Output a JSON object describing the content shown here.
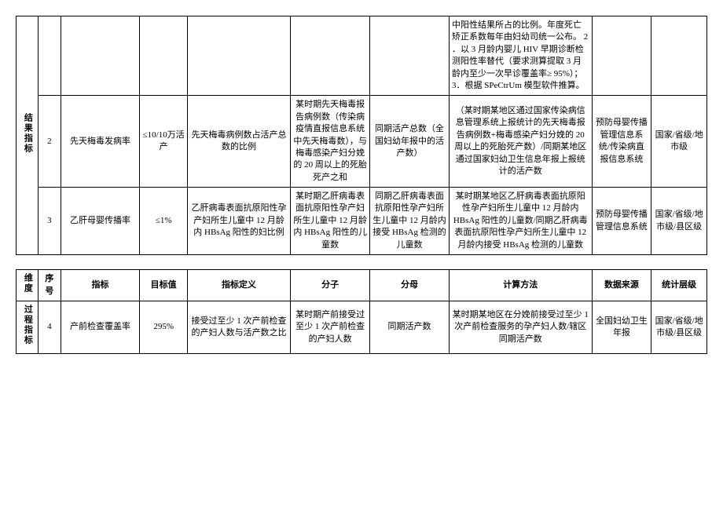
{
  "table1": {
    "dimension": "结果指标",
    "row1": {
      "calc_note": "中阳性结果所占的比例。年度死亡矫正系数每年由妇幼司统一公布。\n2 ．以 3 月龄内婴儿 HIV 早期诊断检测阳性率替代（要求测算提取 3 月龄内至少一次早诊覆盖率≥ 95%）；\n3．根据 SPeCtrUm 模型软件推算。"
    },
    "row2": {
      "seq": "2",
      "indicator": "先天梅毒发病率",
      "target": "≤10/10万活产",
      "definition": "先天梅毒病例数占活产总数的比例",
      "numerator": "某时期先天梅毒报告病例数（传染病疫情直报信息系统中先天梅毒数），与梅毒感染产妇分娩的 20 周以上的死胎死产之和",
      "denominator": "同期活产总数（全国妇幼年报中的活产数）",
      "calc": "（某时期某地区通过国家传染病信息管理系统上报统计的先天梅毒报告病例数+梅毒感染产妇分娩的 20 周以上的死胎死产数）/同期某地区通过国家妇幼卫生信息年报上报统计的活产数",
      "source": "预防母婴传播管理信息系统/传染病直报信息系统",
      "level": "国家/省级/地市级"
    },
    "row3": {
      "seq": "3",
      "indicator": "乙肝母婴传播率",
      "target": "≤1%",
      "definition": "乙肝病毒表面抗原阳性孕产妇所生儿童中 12 月龄内 HBsAg 阳性的妇比例",
      "numerator": "某时期乙肝病毒表面抗原阳性孕产妇所生儿童中 12 月龄内 HBsAg 阳性的儿童数",
      "denominator": "同期乙肝病毒表面抗原阳性孕产妇所生儿童中 12 月龄内接受 HBsAg 检测的儿童数",
      "calc": "某时期某地区乙肝病毒表面抗原阳性孕产妇所生儿童中 12 月龄内 HBsAg 阳性的儿童数/同期乙肝病毒表面抗原阳性孕产妇所生儿童中 12 月龄内接受 HBsAg 检测的儿童数",
      "source": "预防母婴传播管理信息系统",
      "level": "国家/省级/地市级/县区级"
    }
  },
  "table2": {
    "headers": {
      "dim": "维度",
      "seq": "序号",
      "indicator": "指标",
      "target": "目标值",
      "definition": "指标定义",
      "numerator": "分子",
      "denominator": "分母",
      "calc": "计算方法",
      "source": "数据来源",
      "level": "统计层级"
    },
    "dimension": "过程指标",
    "row4": {
      "seq": "4",
      "indicator": "产前检查覆盖率",
      "target": "295%",
      "definition": "接受过至少 1 次产前检查的产妇人数与活产数之比",
      "numerator": "某时期产前接受过至少 1 次产前检查的产妇人数",
      "denominator": "同期活产数",
      "calc": "某时期某地区在分娩前接受过至少 1 次产前检查服务的孕产妇人数/辖区同期活产数",
      "source": "全国妇幼卫生年报",
      "level": "国家/省级/地市级/县区级"
    }
  }
}
